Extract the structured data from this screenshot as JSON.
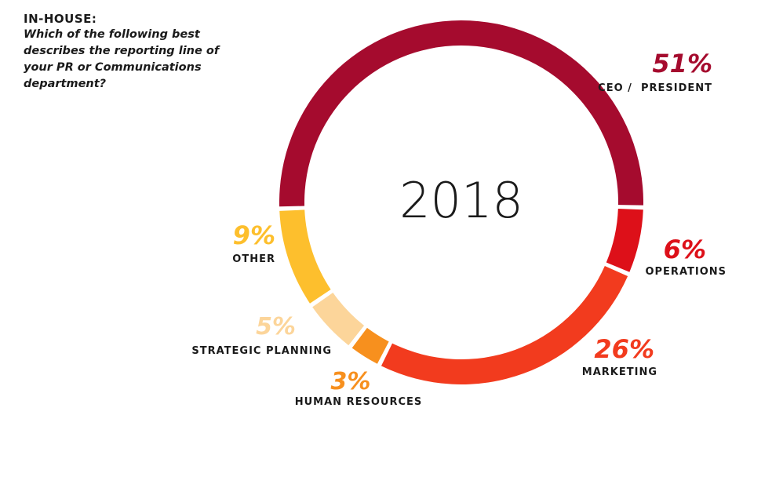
{
  "header": {
    "kicker": "IN-HOUSE:",
    "question": "Which of the following best\ndescribes the reporting line of\nyour PR or Communications\ndepartment?"
  },
  "chart_data": {
    "type": "pie",
    "subtype": "donut",
    "center_label": "2018",
    "slices": [
      {
        "label": "CEO /  PRESIDENT",
        "value": 51,
        "display": "51%",
        "color": "#A50B2E"
      },
      {
        "label": "OPERATIONS",
        "value": 6,
        "display": "6%",
        "color": "#DD1019"
      },
      {
        "label": "MARKETING",
        "value": 26,
        "display": "26%",
        "color": "#F23B1E"
      },
      {
        "label": "HUMAN RESOURCES",
        "value": 3,
        "display": "3%",
        "color": "#F7901E"
      },
      {
        "label": "STRATEGIC PLANNING",
        "value": 5,
        "display": "5%",
        "color": "#FCD59A"
      },
      {
        "label": "OTHER",
        "value": 9,
        "display": "9%",
        "color": "#FDBF2D"
      }
    ]
  }
}
